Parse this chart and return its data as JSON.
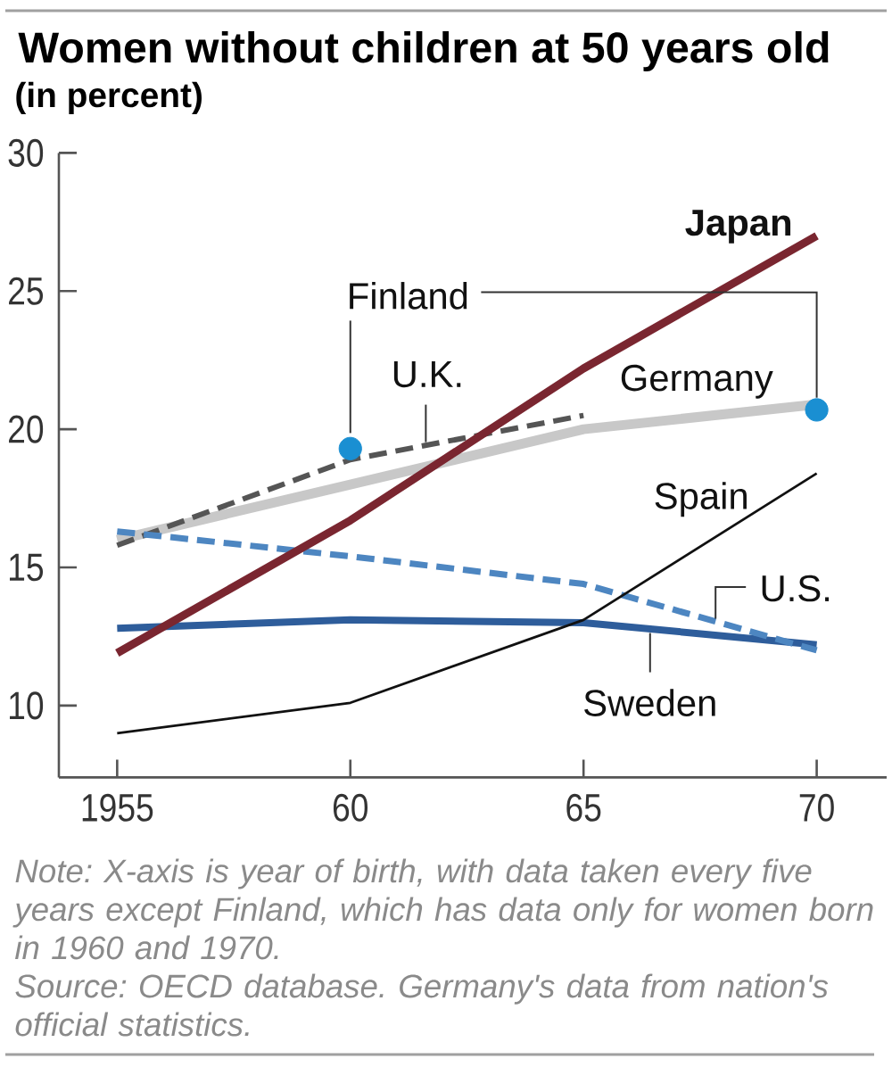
{
  "chart_data": {
    "type": "line",
    "title": "Women without children at 50 years old",
    "subtitle": "(in percent)",
    "x": [
      1955,
      1960,
      1965,
      1970
    ],
    "xlim": [
      1953.75,
      1971.5
    ],
    "xticks": [
      1955,
      {
        "value": 1960,
        "label": "60"
      },
      {
        "value": 1965,
        "label": "65"
      },
      {
        "value": 1970,
        "label": "70"
      }
    ],
    "ylim": [
      7.4,
      30
    ],
    "yticks": [
      10,
      15,
      20,
      25,
      30
    ],
    "series": [
      {
        "name": "Germany",
        "color": "#c8c8c8",
        "values": [
          16.0,
          18.0,
          20.0,
          20.9
        ]
      },
      {
        "name": "U.K.",
        "color": "#555555",
        "line_style": "dashed",
        "values": [
          15.8,
          18.9,
          20.5,
          null
        ]
      },
      {
        "name": "Sweden",
        "color": "#2e5d9b",
        "values": [
          12.8,
          13.1,
          13.0,
          12.2
        ]
      },
      {
        "name": "U.S.",
        "color": "#4d86c1",
        "line_style": "dashed",
        "values": [
          16.3,
          15.4,
          14.4,
          12.0
        ]
      },
      {
        "name": "Spain",
        "color": "#111111",
        "values": [
          9.0,
          10.1,
          13.1,
          18.4
        ]
      },
      {
        "name": "Japan",
        "color": "#7a2630",
        "values": [
          11.9,
          16.7,
          22.2,
          27.0
        ]
      },
      {
        "name": "Finland",
        "color": "#1a8fd2",
        "type": "scatter",
        "marker": "circle",
        "x": [
          1960,
          1970
        ],
        "values": [
          19.3,
          20.7
        ]
      }
    ],
    "annotations": [
      "Note: X-axis is year of birth, with data taken every five years except Finland, which has data only for women born in 1960 and 1970.",
      "Source: OECD database. Germany's data from nation's official statistics."
    ]
  }
}
